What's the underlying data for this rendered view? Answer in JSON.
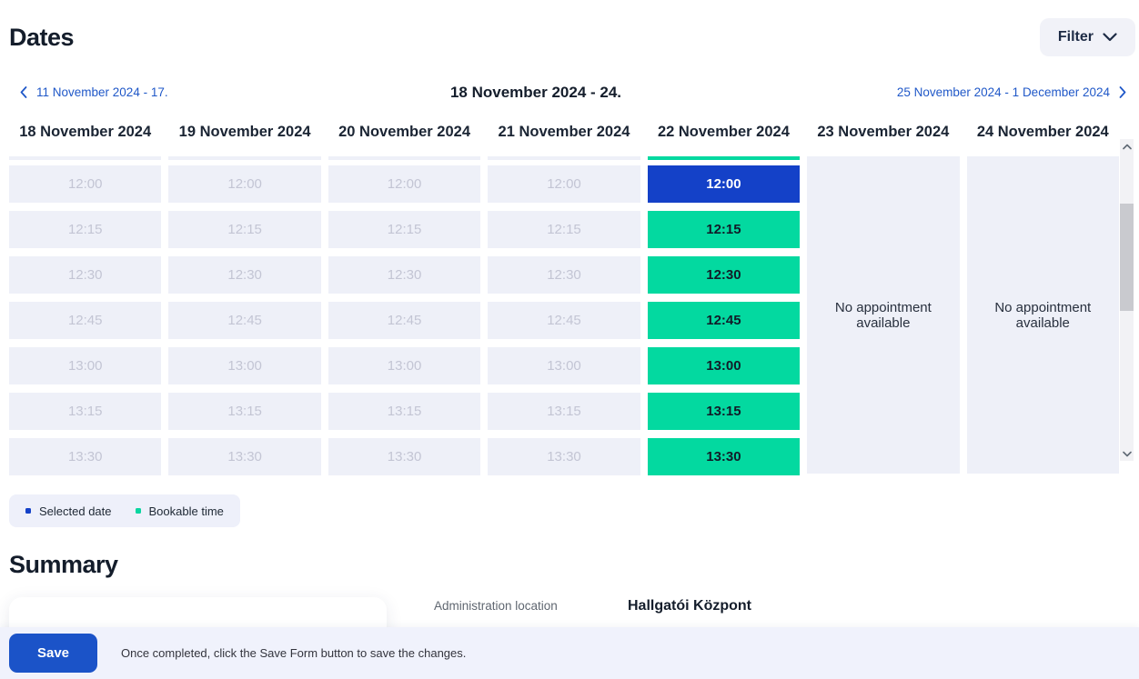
{
  "page": {
    "title": "Dates",
    "summary_title": "Summary"
  },
  "filter": {
    "label": "Filter"
  },
  "week_nav": {
    "prev_label": "11 November 2024 - 17.",
    "current_label": "18 November 2024 - 24.",
    "next_label": "25 November 2024 - 1 December 2024"
  },
  "calendar": {
    "days": [
      {
        "label": "18 November 2024",
        "type": "disabled",
        "times": [
          {
            "time": "12:00",
            "state": "disabled"
          },
          {
            "time": "12:15",
            "state": "disabled"
          },
          {
            "time": "12:30",
            "state": "disabled"
          },
          {
            "time": "12:45",
            "state": "disabled"
          },
          {
            "time": "13:00",
            "state": "disabled"
          },
          {
            "time": "13:15",
            "state": "disabled"
          },
          {
            "time": "13:30",
            "state": "disabled"
          }
        ]
      },
      {
        "label": "19 November 2024",
        "type": "disabled",
        "times": [
          {
            "time": "12:00",
            "state": "disabled"
          },
          {
            "time": "12:15",
            "state": "disabled"
          },
          {
            "time": "12:30",
            "state": "disabled"
          },
          {
            "time": "12:45",
            "state": "disabled"
          },
          {
            "time": "13:00",
            "state": "disabled"
          },
          {
            "time": "13:15",
            "state": "disabled"
          },
          {
            "time": "13:30",
            "state": "disabled"
          }
        ]
      },
      {
        "label": "20 November 2024",
        "type": "disabled",
        "times": [
          {
            "time": "12:00",
            "state": "disabled"
          },
          {
            "time": "12:15",
            "state": "disabled"
          },
          {
            "time": "12:30",
            "state": "disabled"
          },
          {
            "time": "12:45",
            "state": "disabled"
          },
          {
            "time": "13:00",
            "state": "disabled"
          },
          {
            "time": "13:15",
            "state": "disabled"
          },
          {
            "time": "13:30",
            "state": "disabled"
          }
        ]
      },
      {
        "label": "21 November 2024",
        "type": "disabled",
        "times": [
          {
            "time": "12:00",
            "state": "disabled"
          },
          {
            "time": "12:15",
            "state": "disabled"
          },
          {
            "time": "12:30",
            "state": "disabled"
          },
          {
            "time": "12:45",
            "state": "disabled"
          },
          {
            "time": "13:00",
            "state": "disabled"
          },
          {
            "time": "13:15",
            "state": "disabled"
          },
          {
            "time": "13:30",
            "state": "disabled"
          }
        ]
      },
      {
        "label": "22 November 2024",
        "type": "active",
        "times": [
          {
            "time": "12:00",
            "state": "selected"
          },
          {
            "time": "12:15",
            "state": "bookable"
          },
          {
            "time": "12:30",
            "state": "bookable"
          },
          {
            "time": "12:45",
            "state": "bookable"
          },
          {
            "time": "13:00",
            "state": "bookable"
          },
          {
            "time": "13:15",
            "state": "bookable"
          },
          {
            "time": "13:30",
            "state": "bookable"
          }
        ]
      },
      {
        "label": "23 November 2024",
        "type": "empty",
        "empty_text": "No appointment available"
      },
      {
        "label": "24 November 2024",
        "type": "empty",
        "empty_text": "No appointment available"
      }
    ]
  },
  "legend": {
    "selected_label": "Selected date",
    "bookable_label": "Bookable time"
  },
  "summary": {
    "fields": [
      {
        "label": "Administration location",
        "value": "Hallgatói Központ"
      }
    ]
  },
  "footer": {
    "save_label": "Save",
    "note": "Once completed, click the Save Form button to save the changes."
  },
  "colors": {
    "selected_blue": "#1441c8",
    "bookable_green": "#03d9a0",
    "link_blue": "#2058c8",
    "save_blue": "#1b53c8",
    "slot_disabled_bg": "#eef0f8",
    "legend_bg": "#eef0fa",
    "footer_bg": "#f0f2fc"
  }
}
